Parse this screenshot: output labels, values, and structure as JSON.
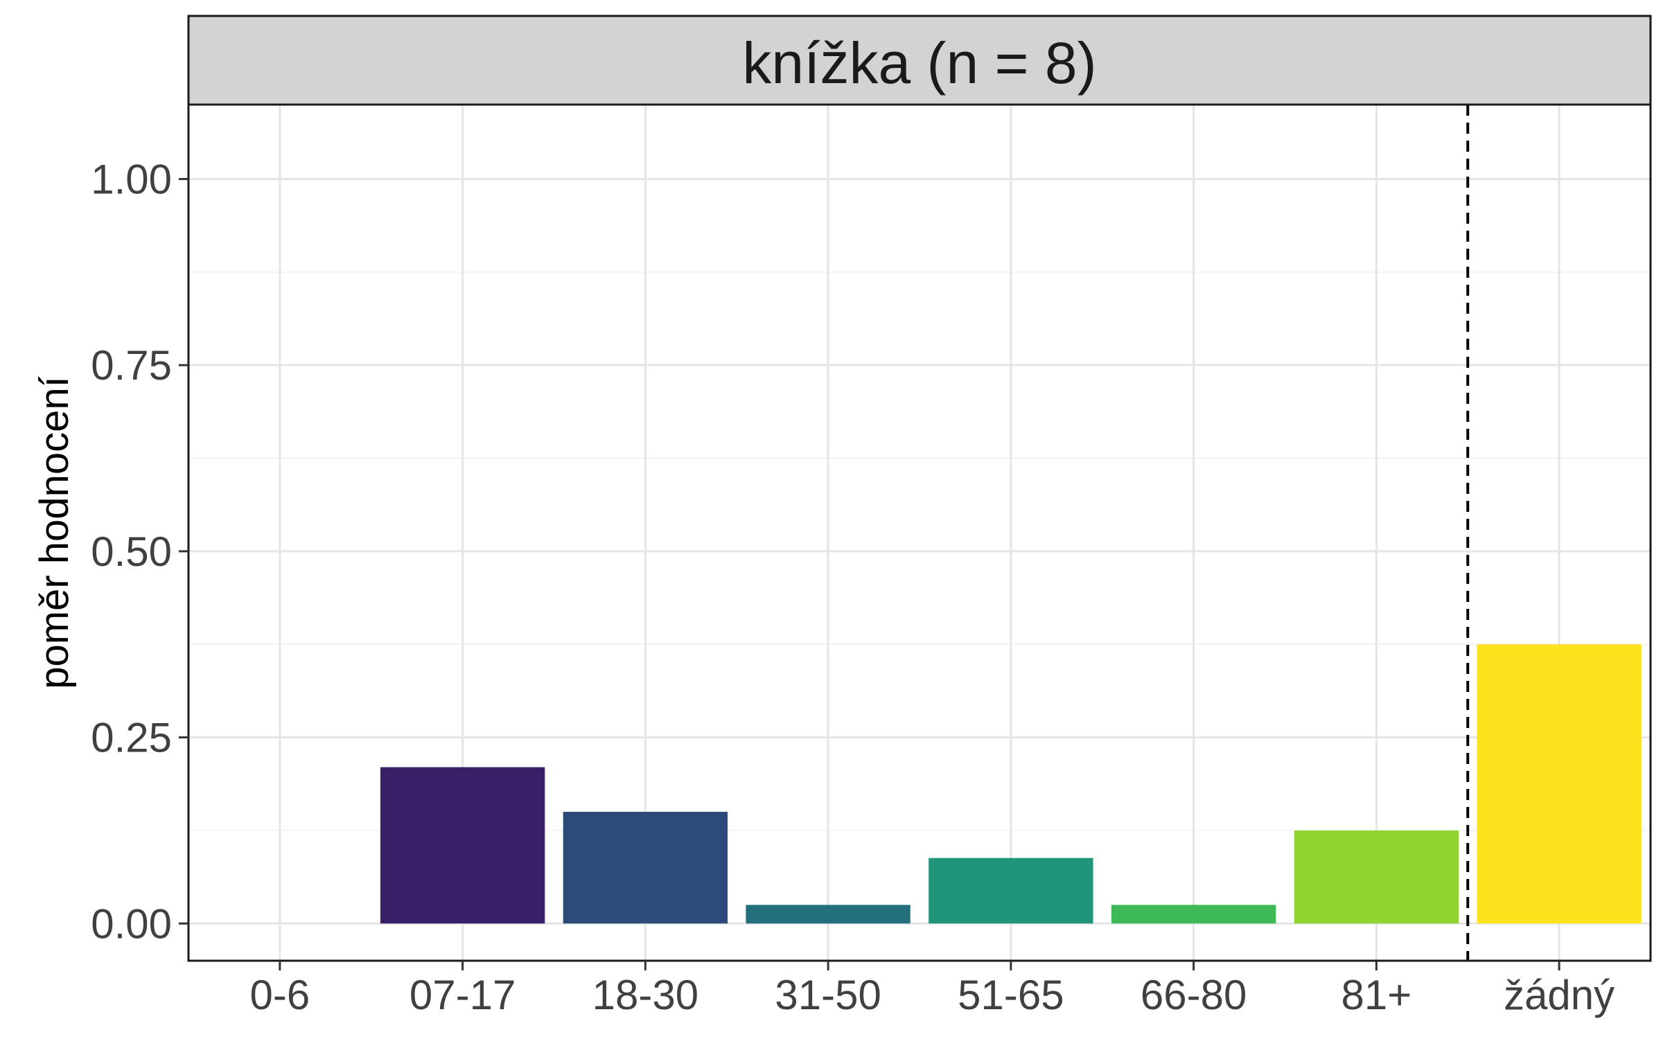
{
  "chart_data": {
    "type": "bar",
    "facet_title": "knížka (n = 8)",
    "xlabel": "",
    "ylabel": "poměr hodnocení",
    "categories": [
      "0-6",
      "07-17",
      "18-30",
      "31-50",
      "51-65",
      "66-80",
      "81+",
      "žádný"
    ],
    "values": [
      0.0,
      0.21,
      0.15,
      0.025,
      0.088,
      0.025,
      0.125,
      0.375
    ],
    "colors": [
      "#440154",
      "#3A1F68",
      "#2C4A7A",
      "#236F7E",
      "#21957A",
      "#3DBA57",
      "#8FD431",
      "#FDE31E"
    ],
    "ylim": [
      -0.05,
      1.1
    ],
    "yticks": [
      0.0,
      0.25,
      0.5,
      0.75,
      1.0
    ],
    "ytick_labels": [
      "0.00",
      "0.25",
      "0.50",
      "0.75",
      "1.00"
    ],
    "grid": true,
    "reference_line": {
      "style": "dashed",
      "between": [
        "81+",
        "žádný"
      ]
    },
    "style": {
      "panel_border": "#1a1a1a",
      "grid_major": "#E5E5E5",
      "grid_minor": "#F2F2F2",
      "strip_fill": "#D3D3D3",
      "tick_text": "#404040"
    }
  }
}
